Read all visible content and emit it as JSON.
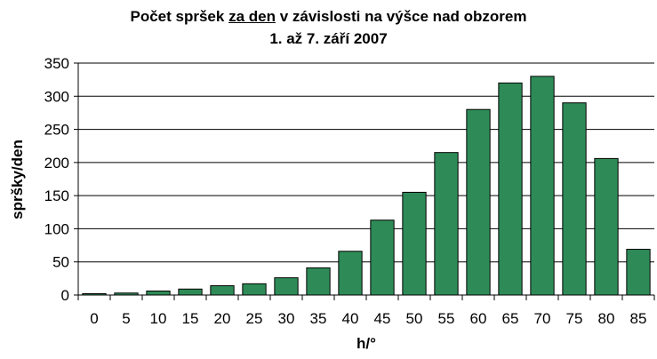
{
  "chart_data": {
    "type": "bar",
    "title": {
      "line1_pre": "Počet spršek ",
      "line1_underlined": "za den",
      "line1_post": " v závislosti na výšce nad obzorem",
      "line2": "1. až 7. září 2007"
    },
    "xlabel": "h/°",
    "ylabel": "spršky/den",
    "categories": [
      "0",
      "5",
      "10",
      "15",
      "20",
      "25",
      "30",
      "35",
      "40",
      "45",
      "50",
      "55",
      "60",
      "65",
      "70",
      "75",
      "80",
      "85"
    ],
    "values": [
      2,
      3,
      6,
      9,
      14,
      17,
      26,
      41,
      66,
      113,
      155,
      215,
      280,
      320,
      330,
      290,
      206,
      69
    ],
    "ylim": [
      0,
      350
    ],
    "yticks": [
      "0",
      "50",
      "100",
      "150",
      "200",
      "250",
      "300",
      "350"
    ],
    "bar_color": "#2e8b57",
    "gridlines": true,
    "legend": "none"
  }
}
